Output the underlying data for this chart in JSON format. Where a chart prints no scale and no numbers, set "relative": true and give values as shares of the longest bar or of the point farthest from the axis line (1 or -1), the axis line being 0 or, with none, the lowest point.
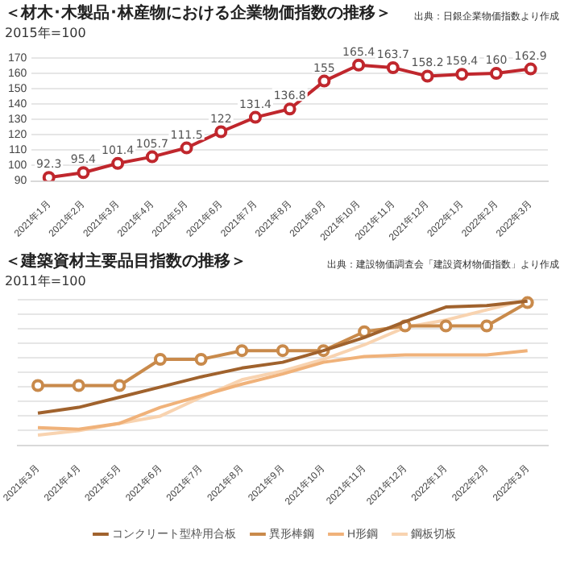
{
  "chart_data": [
    {
      "type": "line",
      "title": "＜材木･木製品･林産物における企業物価指数の推移＞",
      "ylabel": "2015年=100",
      "annotations": [
        "出典：日銀企業物価指数より作成"
      ],
      "categories": [
        "2021年1月",
        "2021年2月",
        "2021年3月",
        "2021年4月",
        "2021年5月",
        "2021年6月",
        "2021年7月",
        "2021年8月",
        "2021年9月",
        "2021年10月",
        "2021年11月",
        "2021年12月",
        "2022年1月",
        "2022年2月",
        "2022年3月"
      ],
      "series": [
        {
          "color": "#c0272d",
          "values": [
            92.3,
            95.4,
            101.4,
            105.7,
            111.5,
            122,
            131.4,
            136.8,
            155,
            165.4,
            163.7,
            158.2,
            159.4,
            160,
            162.9
          ]
        }
      ],
      "ylim": [
        90,
        170
      ],
      "yticks": [
        90,
        100,
        110,
        120,
        130,
        140,
        150,
        160,
        170
      ],
      "grid": "y",
      "data_labels": true,
      "marker": "circle",
      "line_style": "solid",
      "legend": false
    },
    {
      "type": "line",
      "title": "＜建築資材主要品目指数の推移＞",
      "ylabel": "2011年=100",
      "annotations": [
        "出典：建設物価調査会「建設資材物価指数」より作成"
      ],
      "categories": [
        "2021年3月",
        "2021年4月",
        "2021年5月",
        "2021年6月",
        "2021年7月",
        "2021年8月",
        "2021年9月",
        "2021年10月",
        "2021年11月",
        "2021年12月",
        "2022年1月",
        "2022年2月",
        "2022年3月"
      ],
      "series": [
        {
          "name": "コンクリート型枠用合板",
          "color": "#a0622d",
          "marker": "none",
          "values": [
            0.22,
            0.26,
            0.33,
            0.4,
            0.47,
            0.53,
            0.57,
            0.65,
            0.74,
            0.85,
            0.95,
            0.96,
            0.99
          ]
        },
        {
          "name": "異形棒鋼",
          "color": "#c98a4b",
          "marker": "circle",
          "values": [
            0.41,
            0.41,
            0.41,
            0.59,
            0.59,
            0.65,
            0.65,
            0.65,
            0.78,
            0.82,
            0.82,
            0.82,
            0.98
          ]
        },
        {
          "name": "H形鋼",
          "color": "#f0b27a",
          "marker": "none",
          "values": [
            0.12,
            0.11,
            0.15,
            0.26,
            0.34,
            0.42,
            0.49,
            0.57,
            0.61,
            0.62,
            0.62,
            0.62,
            0.65
          ]
        },
        {
          "name": "鋼板切板",
          "color": "#f8d3b0",
          "marker": "none",
          "values": [
            0.07,
            0.1,
            0.15,
            0.2,
            0.33,
            0.45,
            0.51,
            0.59,
            0.69,
            0.81,
            0.86,
            0.93,
            1
          ]
        }
      ],
      "relative": true,
      "grid": "y",
      "line_style": "solid",
      "legend": "bottom"
    }
  ]
}
